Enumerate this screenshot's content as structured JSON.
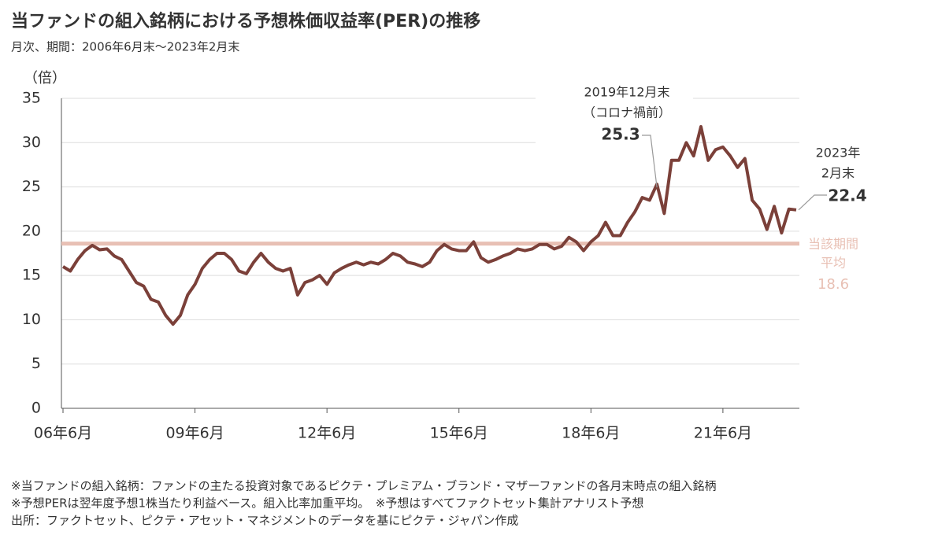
{
  "chart_data": {
    "type": "line",
    "title": "当ファンドの組入銘柄における予想株価収益率(PER)の推移",
    "subtitle": "月次、期間：2006年6月末～2023年2月末",
    "y_axis_label": "（倍）",
    "categories": [
      "06年6月",
      null,
      null,
      null,
      null,
      null,
      null,
      null,
      null,
      null,
      null,
      null,
      null,
      null,
      null,
      null,
      null,
      null,
      "09年6月",
      null,
      null,
      null,
      null,
      null,
      null,
      null,
      null,
      null,
      null,
      null,
      null,
      null,
      null,
      null,
      null,
      null,
      "12年6月",
      null,
      null,
      null,
      null,
      null,
      null,
      null,
      null,
      null,
      null,
      null,
      null,
      null,
      null,
      null,
      null,
      null,
      "15年6月",
      null,
      null,
      null,
      null,
      null,
      null,
      null,
      null,
      null,
      null,
      null,
      null,
      null,
      null,
      null,
      null,
      null,
      "18年6月",
      null,
      null,
      null,
      null,
      null,
      null,
      null,
      null,
      null,
      null,
      null,
      null,
      null,
      null,
      null,
      null,
      null,
      "21年6月",
      null,
      null,
      null,
      null,
      null,
      null,
      null,
      null,
      null,
      null
    ],
    "values": [
      16.0,
      15.5,
      16.8,
      17.8,
      18.4,
      17.9,
      18.0,
      17.2,
      16.8,
      15.5,
      14.2,
      13.8,
      12.3,
      12.0,
      10.5,
      9.5,
      10.5,
      12.8,
      14.0,
      15.8,
      16.8,
      17.5,
      17.5,
      16.8,
      15.5,
      15.2,
      16.5,
      17.5,
      16.5,
      15.8,
      15.5,
      15.8,
      12.8,
      14.2,
      14.5,
      15.0,
      14.0,
      15.3,
      15.8,
      16.2,
      16.5,
      16.2,
      16.5,
      16.3,
      16.8,
      17.5,
      17.2,
      16.5,
      16.3,
      16.0,
      16.5,
      17.8,
      18.5,
      18.0,
      17.8,
      17.8,
      18.8,
      17.0,
      16.5,
      16.8,
      17.2,
      17.5,
      18.0,
      17.8,
      18.0,
      18.5,
      18.5,
      18.0,
      18.3,
      19.3,
      18.8,
      17.8,
      18.8,
      19.5,
      21.0,
      19.5,
      19.5,
      21.0,
      22.2,
      23.8,
      23.5,
      25.3,
      22.0,
      28.0,
      28.0,
      30.0,
      28.5,
      31.8,
      28.0,
      29.2,
      29.5,
      28.5,
      27.2,
      28.2,
      23.5,
      22.5,
      20.2,
      22.8,
      19.8,
      22.5,
      22.4
    ],
    "color": "#7b4039",
    "ylim": [
      0,
      35
    ],
    "yticks": [
      0,
      5,
      10,
      15,
      20,
      25,
      30,
      35
    ],
    "grid": true,
    "average": {
      "lines": [
        "当該期間",
        "平均"
      ],
      "value": 18.6,
      "color": "#e8c0b4"
    },
    "annotations": [
      {
        "lines": [
          "2019年12月末",
          "（コロナ禍前）"
        ],
        "label": "25.3"
      },
      {
        "lines": [
          "2023年",
          "2月末"
        ],
        "label": "22.4"
      }
    ],
    "notes": [
      "※当ファンドの組入銘柄：ファンドの主たる投資対象であるピクテ・プレミアム・ブランド・マザーファンドの各月末時点の組入銘柄",
      "※予想PERは翌年度予想1株当たり利益ベース。組入比率加重平均。　※予想はすべてファクトセット集計アナリスト予想",
      "出所：ファクトセット、ピクテ・アセット・マネジメントのデータを基にピクテ・ジャパン作成"
    ]
  }
}
